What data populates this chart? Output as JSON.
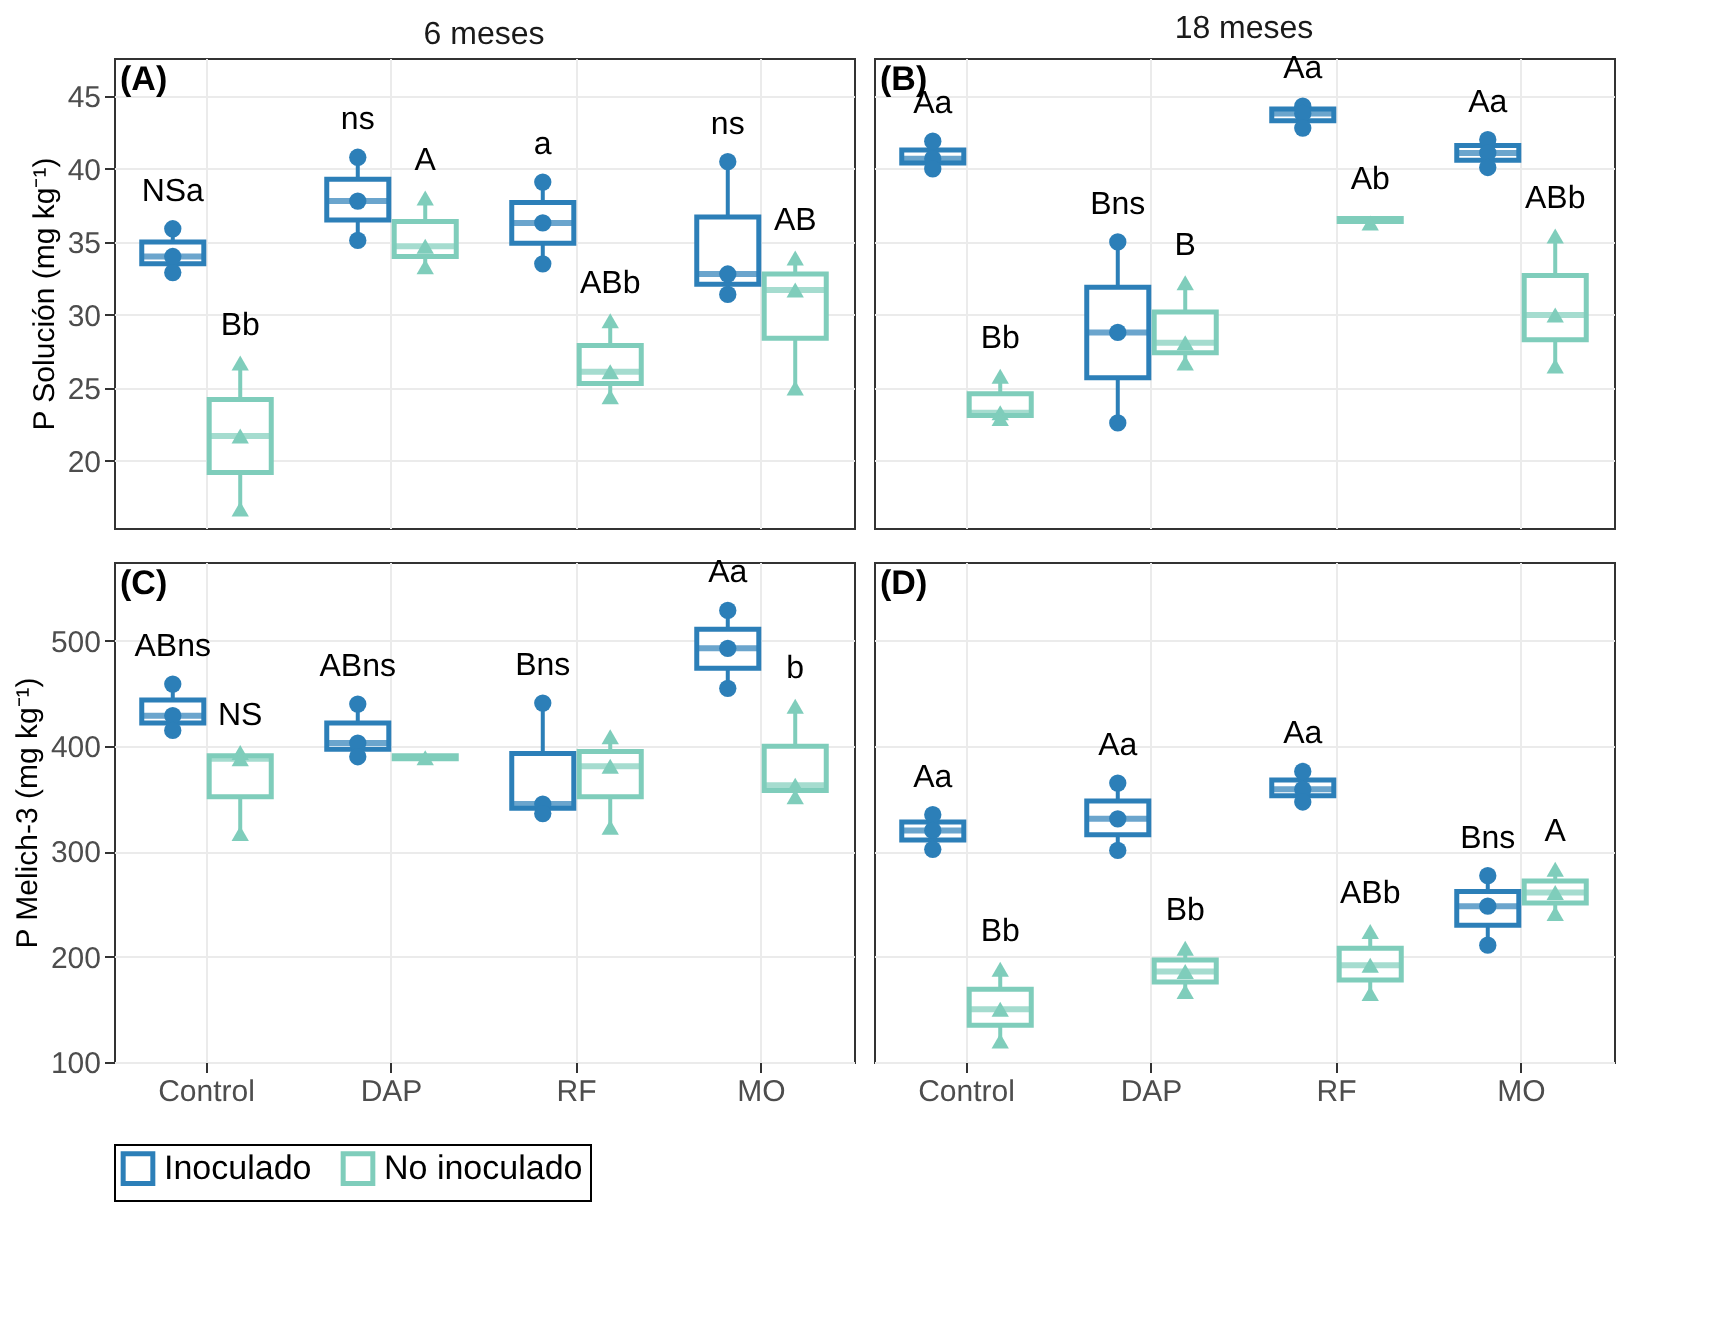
{
  "chart_data": [
    {
      "type": "box",
      "title": "6 meses",
      "ylabel": "P Solución (mg kg⁻¹)",
      "categories": [
        "Control",
        "DAP",
        "RF",
        "MO"
      ],
      "ylim": [
        15.4,
        47.6
      ],
      "yticks": [
        20,
        25,
        30,
        35,
        40,
        45
      ],
      "grid": true,
      "tick_labels": "y",
      "legend": "bottom",
      "annotations": [
        "(A)"
      ],
      "series": [
        {
          "name": "Inoculado",
          "color": "#2c7fb8",
          "boxes": [
            {
              "low": 32.9,
              "q1": 33.5,
              "median": 34.0,
              "q3": 35.0,
              "high": 35.9
            },
            {
              "low": 35.1,
              "q1": 36.5,
              "median": 37.8,
              "q3": 39.3,
              "high": 40.8
            },
            {
              "low": 33.5,
              "q1": 34.9,
              "median": 36.3,
              "q3": 37.7,
              "high": 39.1
            },
            {
              "low": 31.4,
              "q1": 32.1,
              "median": 32.8,
              "q3": 36.7,
              "high": 40.5
            }
          ],
          "value_labels": [
            "NSa",
            "ns",
            "a",
            "ns"
          ]
        },
        {
          "name": "No inoculado",
          "color": "#7fcdbb",
          "boxes": [
            {
              "low": 16.7,
              "q1": 19.2,
              "median": 21.7,
              "q3": 24.2,
              "high": 26.7
            },
            {
              "low": 33.3,
              "q1": 34.0,
              "median": 34.7,
              "q3": 36.4,
              "high": 38.0
            },
            {
              "low": 24.4,
              "q1": 25.3,
              "median": 26.1,
              "q3": 27.9,
              "high": 29.6
            },
            {
              "low": 25.0,
              "q1": 28.4,
              "median": 31.7,
              "q3": 32.8,
              "high": 33.9
            }
          ],
          "value_labels": [
            "Bb",
            "A",
            "ABb",
            "AB"
          ]
        },
        {
          "type": "scatter",
          "marker": "circle",
          "color": "#2c7fb8",
          "x": [
            "Control",
            "Control",
            "Control",
            "DAP",
            "DAP",
            "DAP",
            "RF",
            "RF",
            "RF",
            "MO",
            "MO",
            "MO"
          ],
          "values": [
            35.9,
            34.0,
            32.9,
            40.8,
            37.8,
            35.1,
            39.1,
            36.3,
            33.5,
            40.5,
            32.8,
            31.4
          ]
        },
        {
          "type": "scatter",
          "marker": "triangle",
          "color": "#7fcdbb",
          "x": [
            "Control",
            "Control",
            "Control",
            "DAP",
            "DAP",
            "DAP",
            "RF",
            "RF",
            "RF",
            "MO",
            "MO",
            "MO"
          ],
          "values": [
            26.7,
            21.7,
            16.7,
            38.0,
            34.7,
            33.3,
            29.6,
            26.1,
            24.4,
            33.9,
            31.7,
            25.0
          ]
        }
      ]
    },
    {
      "type": "box",
      "title": "18 meses",
      "categories": [
        "Control",
        "DAP",
        "RF",
        "MO"
      ],
      "ylim": [
        15.4,
        47.6
      ],
      "yticks": [
        20,
        25,
        30,
        35,
        40,
        45
      ],
      "grid": true,
      "tick_labels": false,
      "legend": "bottom",
      "annotations": [
        "(B)"
      ],
      "series": [
        {
          "name": "Inoculado",
          "color": "#2c7fb8",
          "boxes": [
            {
              "low": 40.0,
              "q1": 40.4,
              "median": 40.7,
              "q3": 41.3,
              "high": 41.9
            },
            {
              "low": 22.6,
              "q1": 25.7,
              "median": 28.8,
              "q3": 31.9,
              "high": 35.0
            },
            {
              "low": 42.8,
              "q1": 43.3,
              "median": 43.8,
              "q3": 44.1,
              "high": 44.3
            },
            {
              "low": 40.1,
              "q1": 40.6,
              "median": 41.1,
              "q3": 41.6,
              "high": 42.0
            }
          ],
          "value_labels": [
            "Aa",
            "Bns",
            "Aa",
            "Aa"
          ]
        },
        {
          "name": "No inoculado",
          "color": "#7fcdbb",
          "boxes": [
            {
              "low": 22.9,
              "q1": 23.1,
              "median": 23.3,
              "q3": 24.6,
              "high": 25.8
            },
            {
              "low": 26.7,
              "q1": 27.4,
              "median": 28.1,
              "q3": 30.2,
              "high": 32.2
            },
            {
              "low": 36.3,
              "q1": 36.4,
              "median": 36.5,
              "q3": 36.6,
              "high": 36.7
            },
            {
              "low": 26.5,
              "q1": 28.3,
              "median": 30.0,
              "q3": 32.7,
              "high": 35.4
            }
          ],
          "value_labels": [
            "Bb",
            "B",
            "Ab",
            "ABb"
          ]
        },
        {
          "type": "scatter",
          "marker": "circle",
          "color": "#2c7fb8",
          "x": [
            "Control",
            "Control",
            "Control",
            "DAP",
            "DAP",
            "DAP",
            "RF",
            "RF",
            "RF",
            "MO",
            "MO",
            "MO"
          ],
          "values": [
            41.9,
            40.7,
            40.0,
            35.0,
            28.8,
            22.6,
            44.3,
            43.8,
            42.8,
            42.0,
            41.1,
            40.1
          ]
        },
        {
          "type": "scatter",
          "marker": "triangle",
          "color": "#7fcdbb",
          "x": [
            "Control",
            "Control",
            "Control",
            "DAP",
            "DAP",
            "DAP",
            "RF",
            "RF",
            "RF",
            "MO",
            "MO",
            "MO"
          ],
          "values": [
            25.8,
            23.3,
            22.9,
            32.2,
            28.1,
            26.7,
            null,
            null,
            36.3,
            35.4,
            30.0,
            26.5
          ]
        }
      ]
    },
    {
      "type": "box",
      "ylabel": "P Melich-3 (mg kg⁻¹)",
      "categories": [
        "Control",
        "DAP",
        "RF",
        "MO"
      ],
      "ylim": [
        100,
        575
      ],
      "yticks": [
        100,
        200,
        300,
        400,
        500
      ],
      "grid": true,
      "legend": "bottom",
      "annotations": [
        "(C)"
      ],
      "series": [
        {
          "name": "Inoculado",
          "color": "#2c7fb8",
          "boxes": [
            {
              "low": 415,
              "q1": 422,
              "median": 429,
              "q3": 444,
              "high": 459
            },
            {
              "low": 390,
              "q1": 397,
              "median": 403,
              "q3": 422,
              "high": 440
            },
            {
              "low": 336,
              "q1": 341,
              "median": 345,
              "q3": 393,
              "high": 441
            },
            {
              "low": 455,
              "q1": 474,
              "median": 493,
              "q3": 511,
              "high": 529
            }
          ],
          "value_labels": [
            "ABns",
            "ABns",
            "Bns",
            "Aa"
          ]
        },
        {
          "name": "No inoculado",
          "color": "#7fcdbb",
          "boxes": [
            {
              "low": 317,
              "q1": 352,
              "median": 388,
              "q3": 391,
              "high": 394
            },
            {
              "low": 387,
              "q1": 388,
              "median": 389,
              "q3": 391,
              "high": 392
            },
            {
              "low": 323,
              "q1": 352,
              "median": 381,
              "q3": 395,
              "high": 409
            },
            {
              "low": 352,
              "q1": 358,
              "median": 363,
              "q3": 400,
              "high": 438
            }
          ],
          "value_labels": [
            "NS",
            null,
            null,
            "b"
          ]
        },
        {
          "type": "scatter",
          "marker": "circle",
          "color": "#2c7fb8",
          "x": [
            "Control",
            "Control",
            "Control",
            "DAP",
            "DAP",
            "DAP",
            "RF",
            "RF",
            "RF",
            "MO",
            "MO",
            "MO"
          ],
          "values": [
            459,
            429,
            415,
            440,
            403,
            390,
            441,
            345,
            336,
            529,
            493,
            455
          ]
        },
        {
          "type": "scatter",
          "marker": "triangle",
          "color": "#7fcdbb",
          "x": [
            "Control",
            "Control",
            "Control",
            "DAP",
            "DAP",
            "DAP",
            "RF",
            "RF",
            "RF",
            "MO",
            "MO",
            "MO"
          ],
          "values": [
            394,
            388,
            317,
            null,
            389,
            null,
            409,
            381,
            323,
            438,
            363,
            352
          ]
        }
      ]
    },
    {
      "type": "box",
      "categories": [
        "Control",
        "DAP",
        "RF",
        "MO"
      ],
      "ylim": [
        100,
        575
      ],
      "yticks": [
        100,
        200,
        300,
        400,
        500
      ],
      "grid": true,
      "tick_labels": "x",
      "legend": "bottom",
      "annotations": [
        "(D)"
      ],
      "series": [
        {
          "name": "Inoculado",
          "color": "#2c7fb8",
          "boxes": [
            {
              "low": 302,
              "q1": 311,
              "median": 320,
              "q3": 328,
              "high": 335
            },
            {
              "low": 301,
              "q1": 316,
              "median": 331,
              "q3": 348,
              "high": 365
            },
            {
              "low": 347,
              "q1": 353,
              "median": 359,
              "q3": 368,
              "high": 376
            },
            {
              "low": 211,
              "q1": 230,
              "median": 248,
              "q3": 262,
              "high": 277
            }
          ],
          "value_labels": [
            "Aa",
            "Aa",
            "Aa",
            "Bns"
          ]
        },
        {
          "name": "No inoculado",
          "color": "#7fcdbb",
          "boxes": [
            {
              "low": 120,
              "q1": 135,
              "median": 150,
              "q3": 169,
              "high": 188
            },
            {
              "low": 167,
              "q1": 176,
              "median": 186,
              "q3": 197,
              "high": 208
            },
            {
              "low": 165,
              "q1": 178,
              "median": 192,
              "q3": 208,
              "high": 224
            },
            {
              "low": 241,
              "q1": 251,
              "median": 261,
              "q3": 272,
              "high": 283
            }
          ],
          "value_labels": [
            "Bb",
            "Bb",
            "ABb",
            "A"
          ]
        },
        {
          "type": "scatter",
          "marker": "circle",
          "color": "#2c7fb8",
          "x": [
            "Control",
            "Control",
            "Control",
            "DAP",
            "DAP",
            "DAP",
            "RF",
            "RF",
            "RF",
            "MO",
            "MO",
            "MO"
          ],
          "values": [
            335,
            320,
            302,
            365,
            331,
            301,
            376,
            359,
            347,
            277,
            248,
            211
          ]
        },
        {
          "type": "scatter",
          "marker": "triangle",
          "color": "#7fcdbb",
          "x": [
            "Control",
            "Control",
            "Control",
            "DAP",
            "DAP",
            "DAP",
            "RF",
            "RF",
            "RF",
            "MO",
            "MO",
            "MO"
          ],
          "values": [
            188,
            150,
            120,
            208,
            186,
            167,
            224,
            192,
            165,
            283,
            261,
            241
          ]
        }
      ]
    }
  ]
}
